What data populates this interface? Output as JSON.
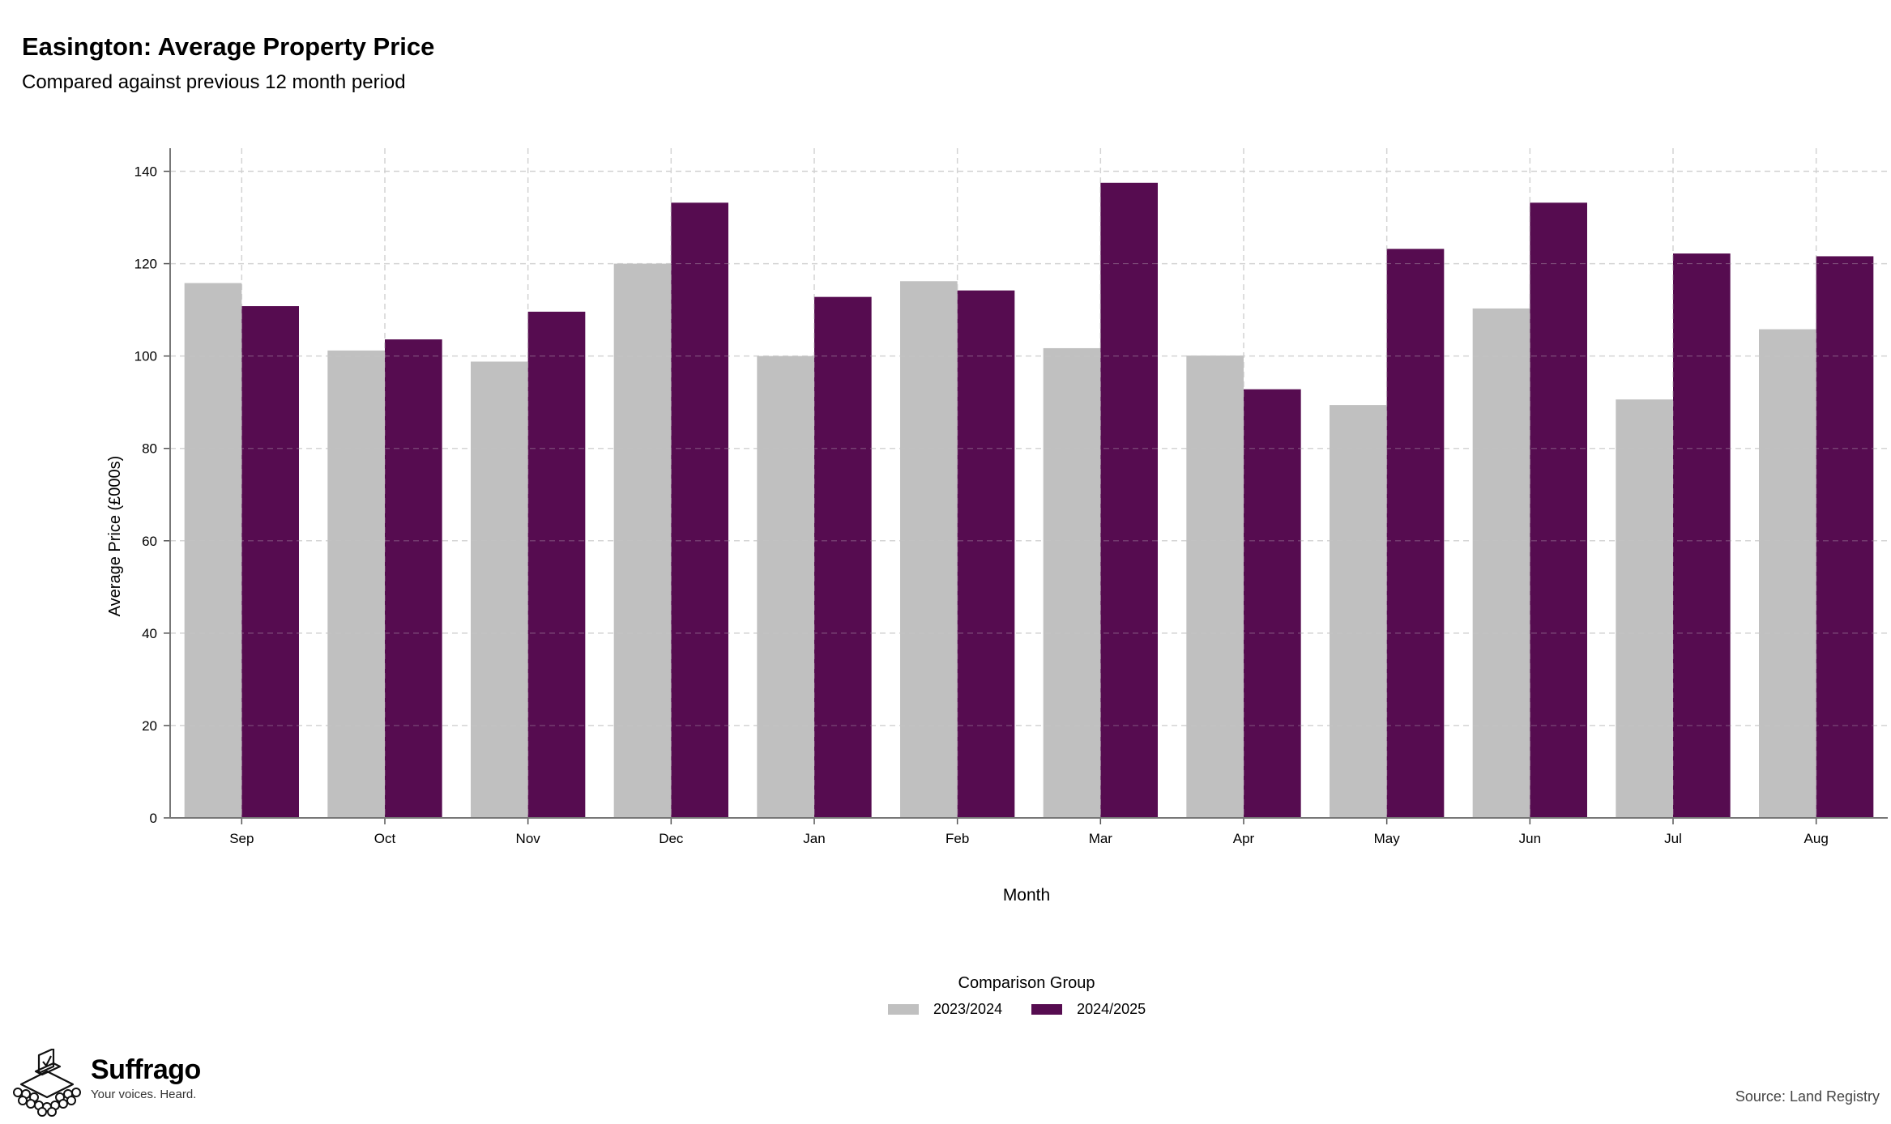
{
  "header": {
    "title": "Easington: Average Property Price",
    "subtitle": "Compared against previous 12 month period"
  },
  "chart_data": {
    "type": "bar",
    "xlabel": "Month",
    "ylabel": "Average Price (£000s)",
    "ylim": [
      0,
      140
    ],
    "yticks": [
      0,
      20,
      40,
      60,
      80,
      100,
      120,
      140
    ],
    "grid": true,
    "categories": [
      "Sep",
      "Oct",
      "Nov",
      "Dec",
      "Jan",
      "Feb",
      "Mar",
      "Apr",
      "May",
      "Jun",
      "Jul",
      "Aug"
    ],
    "series": [
      {
        "name": "2023/2024",
        "color": "#c0c0c0",
        "values": [
          115.8,
          101.2,
          98.8,
          120.0,
          100.0,
          116.2,
          101.7,
          100.1,
          89.4,
          110.3,
          90.6,
          105.8
        ]
      },
      {
        "name": "2024/2025",
        "color": "#560c50",
        "values": [
          110.8,
          103.6,
          109.6,
          133.2,
          112.8,
          114.2,
          137.5,
          92.8,
          123.2,
          133.2,
          122.2,
          121.6
        ]
      }
    ],
    "legend_title": "Comparison Group",
    "legend_position": "bottom"
  },
  "branding": {
    "name": "Suffrago",
    "tagline": "Your voices. Heard.",
    "logo_icon": "ballot-box-icon"
  },
  "footer": {
    "source": "Source: Land Registry"
  }
}
